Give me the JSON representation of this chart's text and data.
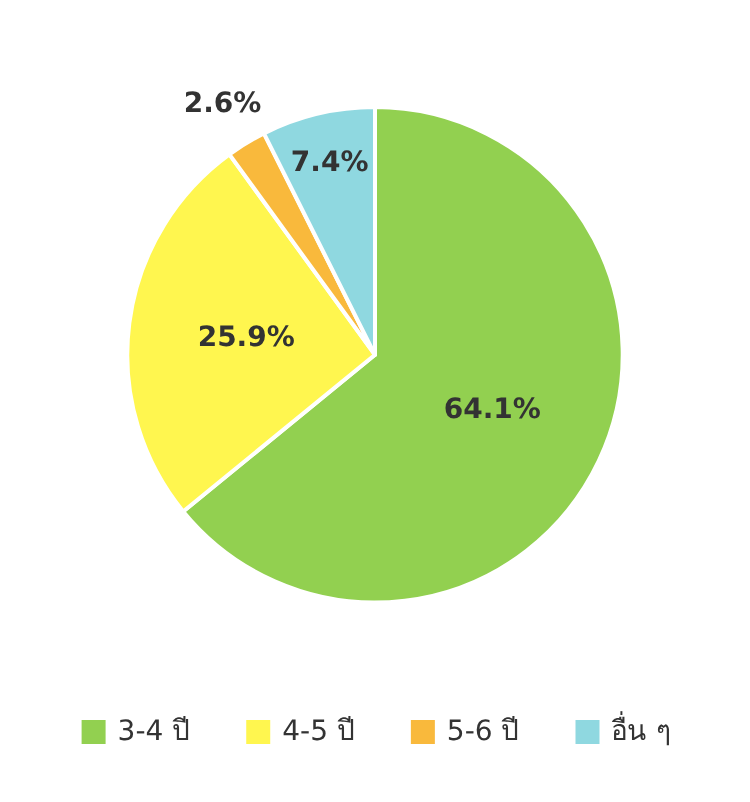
{
  "chart_data": {
    "type": "pie",
    "categories": [
      "3-4 ปี",
      "4-5 ปี",
      "5-6 ปี",
      "อื่น ๆ"
    ],
    "values": [
      64.1,
      25.9,
      2.6,
      7.4
    ],
    "colors": [
      "#92d050",
      "#fff64f",
      "#f9b93c",
      "#8fd8e0"
    ],
    "value_labels": [
      "64.1%",
      "25.9%",
      "2.6%",
      "7.4%"
    ],
    "legend": "bottom"
  }
}
